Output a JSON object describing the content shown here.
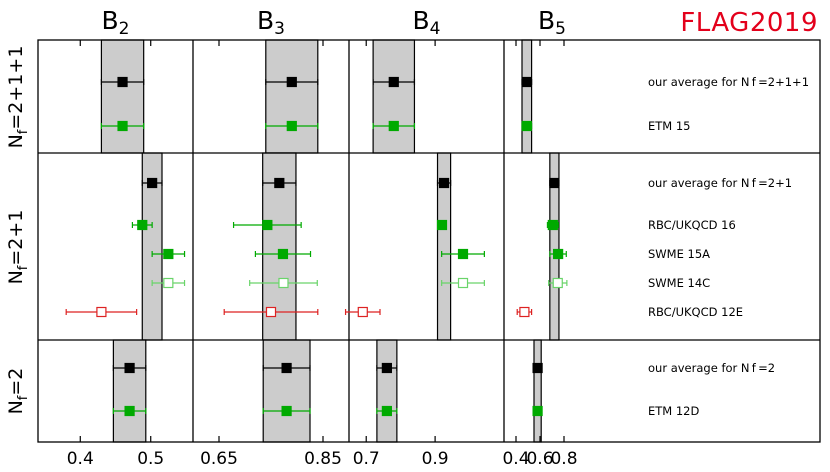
{
  "logo": "FLAG2019",
  "columns": [
    {
      "label": "B",
      "sub": "2"
    },
    {
      "label": "B",
      "sub": "3"
    },
    {
      "label": "B",
      "sub": "4"
    },
    {
      "label": "B",
      "sub": "5"
    }
  ],
  "rows": [
    {
      "label": "N",
      "sub": "f",
      "suffix": "=2+1+1"
    },
    {
      "label": "N",
      "sub": "f",
      "suffix": "=2+1"
    },
    {
      "label": "N",
      "sub": "f",
      "suffix": "=2"
    }
  ],
  "colors": {
    "black": "#000000",
    "green": "#00aa00",
    "lightgreen": "#6ad46a",
    "red": "#dd2222",
    "band": "#cccccc"
  },
  "chart_data": {
    "type": "scatter",
    "panels": [
      {
        "param": "B2",
        "xlim": [
          0.34,
          0.56
        ],
        "ticks": [
          "0.4",
          "0.5"
        ],
        "tick_values": [
          0.4,
          0.5
        ]
      },
      {
        "param": "B3",
        "xlim": [
          0.6,
          0.9
        ],
        "ticks": [
          "0.65",
          "0.85"
        ],
        "tick_values": [
          0.65,
          0.85
        ]
      },
      {
        "param": "B4",
        "xlim": [
          0.65,
          1.1
        ],
        "ticks": [
          "0.7",
          "0.9"
        ],
        "tick_values": [
          0.7,
          0.9
        ]
      },
      {
        "param": "B5",
        "xlim": [
          0.3,
          1.6
        ],
        "ticks": [
          "0.4",
          "0.6",
          "0.8"
        ],
        "tick_values": [
          0.4,
          0.6,
          0.8
        ]
      }
    ],
    "entries": [
      {
        "label": "our average for N_f=2+1+1",
        "group": 0,
        "style": "average",
        "values": [
          [
            0.46,
            0.03
          ],
          [
            0.79,
            0.05
          ],
          [
            0.78,
            0.06
          ],
          [
            0.49,
            0.04
          ]
        ]
      },
      {
        "label": "ETM 15",
        "group": 0,
        "style": "filled-green",
        "values": [
          [
            0.46,
            0.03
          ],
          [
            0.79,
            0.05
          ],
          [
            0.78,
            0.06
          ],
          [
            0.49,
            0.04
          ]
        ]
      },
      {
        "label": "our average for N_f=2+1",
        "group": 1,
        "style": "average",
        "values": [
          [
            0.502,
            0.014
          ],
          [
            0.766,
            0.032
          ],
          [
            0.926,
            0.019
          ],
          [
            0.72,
            0.038
          ]
        ]
      },
      {
        "label": "RBC/UKQCD 16",
        "group": 1,
        "style": "filled-green",
        "values": [
          [
            0.488,
            0.014
          ],
          [
            0.743,
            0.065
          ],
          [
            0.92,
            0.012
          ],
          [
            0.707,
            0.045
          ]
        ]
      },
      {
        "label": "SWME 15A",
        "group": 1,
        "style": "filled-green",
        "values": [
          [
            0.525,
            0.023
          ],
          [
            0.773,
            0.053
          ],
          [
            0.981,
            0.062
          ],
          [
            0.751,
            0.068
          ]
        ]
      },
      {
        "label": "SWME 14C",
        "group": 1,
        "style": "open-green",
        "values": [
          [
            0.525,
            0.023
          ],
          [
            0.774,
            0.065
          ],
          [
            0.981,
            0.062
          ],
          [
            0.748,
            0.076
          ]
        ]
      },
      {
        "label": "RBC/UKQCD 12E",
        "group": 1,
        "style": "open-red",
        "values": [
          [
            0.43,
            0.05
          ],
          [
            0.75,
            0.09
          ],
          [
            0.69,
            0.05
          ],
          [
            0.47,
            0.06
          ]
        ]
      },
      {
        "label": "our average for N_f=2",
        "group": 2,
        "style": "average",
        "values": [
          [
            0.47,
            0.023
          ],
          [
            0.78,
            0.045
          ],
          [
            0.76,
            0.029
          ],
          [
            0.58,
            0.03
          ]
        ]
      },
      {
        "label": "ETM 12D",
        "group": 2,
        "style": "filled-green",
        "values": [
          [
            0.47,
            0.023
          ],
          [
            0.78,
            0.045
          ],
          [
            0.76,
            0.029
          ],
          [
            0.58,
            0.03
          ]
        ]
      }
    ]
  }
}
